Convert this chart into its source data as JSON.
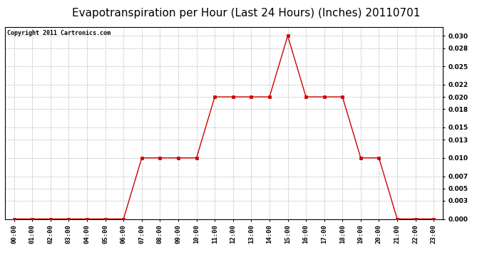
{
  "title": "Evapotranspiration per Hour (Last 24 Hours) (Inches) 20110701",
  "copyright": "Copyright 2011 Cartronics.com",
  "hours": [
    "00:00",
    "01:00",
    "02:00",
    "03:00",
    "04:00",
    "05:00",
    "06:00",
    "07:00",
    "08:00",
    "09:00",
    "10:00",
    "11:00",
    "12:00",
    "13:00",
    "14:00",
    "15:00",
    "16:00",
    "17:00",
    "18:00",
    "19:00",
    "20:00",
    "21:00",
    "22:00",
    "23:00"
  ],
  "values": [
    0.0,
    0.0,
    0.0,
    0.0,
    0.0,
    0.0,
    0.0,
    0.01,
    0.01,
    0.01,
    0.01,
    0.02,
    0.02,
    0.02,
    0.02,
    0.03,
    0.02,
    0.02,
    0.02,
    0.01,
    0.01,
    0.0,
    0.0,
    0.0
  ],
  "line_color": "#cc0000",
  "marker": "s",
  "marker_color": "#cc0000",
  "marker_size": 2.5,
  "bg_color": "#ffffff",
  "grid_color": "#bbbbbb",
  "ylim": [
    0.0,
    0.0315
  ],
  "yticks": [
    0.0,
    0.003,
    0.005,
    0.007,
    0.01,
    0.013,
    0.015,
    0.018,
    0.02,
    0.022,
    0.025,
    0.028,
    0.03
  ],
  "title_fontsize": 11,
  "copyright_fontsize": 6,
  "tick_fontsize": 6.5,
  "fig_width": 6.9,
  "fig_height": 3.75,
  "dpi": 100
}
